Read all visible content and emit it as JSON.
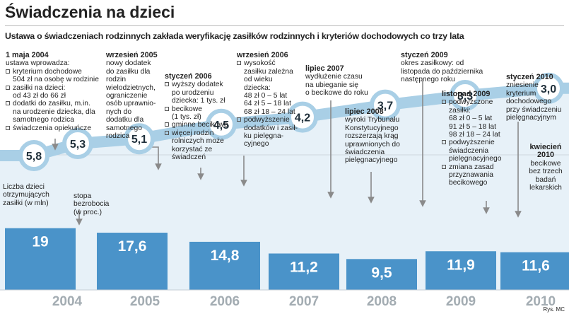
{
  "header": {
    "title": "Świadczenia na dzieci",
    "subtitle": "Ustawa o świadczeniach rodzinnych zakłada weryfikację zasiłków rodzinnych i kryteriów dochodowych co trzy lata"
  },
  "chart_data": [
    {
      "type": "line",
      "label": "Liczba dzieci otrzymujących zasiłki (w mln)",
      "values": [
        5.8,
        5.3,
        5.1,
        4.5,
        4.2,
        3.7,
        3.3,
        3.0
      ],
      "value_labels": [
        "5,8",
        "5,3",
        "5,1",
        "4,5",
        "4,2",
        "3,7",
        "3,3",
        "3,0"
      ],
      "color": "#a9cfe6"
    },
    {
      "type": "bar",
      "label": "stopa bezrobocia (w proc.)",
      "categories": [
        "2004",
        "2005",
        "2006",
        "2007",
        "2008",
        "2009",
        "2010"
      ],
      "values": [
        19,
        17.6,
        14.8,
        11.2,
        9.5,
        11.9,
        11.6
      ],
      "value_labels": [
        "19",
        "17,6",
        "14,8",
        "11,2",
        "9,5",
        "11,9",
        "11,6"
      ],
      "color": "#4a93c9"
    }
  ],
  "annotations": [
    {
      "date": "1 maja 2004",
      "text": [
        "ustawa wprowadza:"
      ],
      "items": [
        [
          "kryterium dochodowe",
          "504 zł na osobę w rodzinie"
        ],
        [
          "zasiłki na dzieci:",
          "od 43 zł do 66 zł"
        ],
        [
          "dodatki do zasiłku, m.in.",
          "na urodzenie dziecka, dla",
          "samotnego rodzica"
        ],
        [
          "świadczenia opiekuńcze"
        ]
      ]
    },
    {
      "date": "wrzesień 2005",
      "text": [
        "nowy dodatek",
        "do zasiłku dla",
        "rodzin",
        "wielodzietnych,",
        "ograniczenie",
        "osób uprawnio-",
        "nych do",
        "dodatku dla",
        "samotnego",
        "rodzica"
      ]
    },
    {
      "date": "styczeń 2006",
      "items": [
        [
          "wyższy dodatek",
          "po urodzeniu",
          "dziecka: 1 tys. zł"
        ],
        [
          "becikowe",
          "(1 tys. zł)"
        ],
        [
          "gminne becikowe"
        ],
        [
          "więcej rodzin",
          "rolniczych może",
          "korzystać ze",
          "świadczeń"
        ]
      ]
    },
    {
      "date": "wrzesień 2006",
      "items": [
        [
          "wysokość",
          "zasiłku zależna",
          "od wieku",
          "dziecka:",
          "48 zł 0 – 5 lat",
          "64 zł 5 – 18 lat",
          "68 zł 18 – 24 lat"
        ],
        [
          "podwyższenie",
          "dodatków i zasił-",
          "ku pielęgna-",
          "cyjnego"
        ]
      ]
    },
    {
      "date": "lipiec 2007",
      "text": [
        "wydłużenie czasu",
        "na ubieganie się",
        "o becikowe do roku"
      ]
    },
    {
      "date": "lipiec 2008",
      "text": [
        "wyroki Trybunału",
        "Konstytucyjnego",
        "rozszerzają krąg",
        "uprawnionych do",
        "świadczenia",
        "pielęgnacyjnego"
      ]
    },
    {
      "date": "styczeń 2009",
      "text": [
        "okres zasiłkowy: od",
        "listopada do października",
        "następnego roku"
      ]
    },
    {
      "date": "listopad 2009",
      "items": [
        [
          "podwyższone",
          "zasiłki:",
          "68 zł 0 – 5 lat",
          "91 zł 5 – 18 lat",
          "98 zł 18 – 24 lat"
        ],
        [
          "podwyższenie",
          "świadczenia",
          "pielęgnacyjnego"
        ],
        [
          "zmiana zasad",
          "przyznawania",
          "becikowego"
        ]
      ]
    },
    {
      "date": "styczeń 2010",
      "text": [
        "zniesienie",
        "kryterium",
        "dochodowego",
        "przy świadczeniu",
        "pielęgnacyjnym"
      ]
    },
    {
      "date": "kwiecień 2010",
      "text": [
        "becikowe",
        "bez trzech",
        "badań",
        "lekarskich"
      ]
    }
  ],
  "source": "Rys. MC"
}
